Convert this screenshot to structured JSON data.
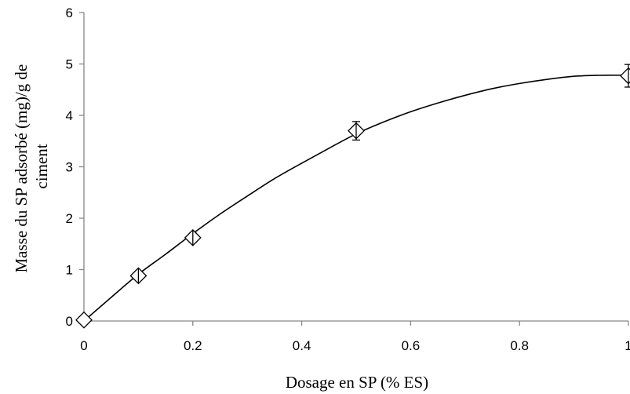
{
  "chart_data": {
    "type": "scatter",
    "title": "",
    "xlabel": "Dosage en SP (% ES)",
    "ylabel_lines": [
      "Masse du SP adsorbé (mg)/g de",
      "ciment"
    ],
    "xlim": [
      0,
      1
    ],
    "ylim": [
      0,
      6
    ],
    "x_ticks": [
      0,
      0.2,
      0.4,
      0.6,
      0.8,
      1
    ],
    "x_tick_labels": [
      "0",
      "0.2",
      "0.4",
      "0.6",
      "0.8",
      "1"
    ],
    "y_ticks": [
      0,
      1,
      2,
      3,
      4,
      5,
      6
    ],
    "y_tick_labels": [
      "0",
      "1",
      "2",
      "3",
      "4",
      "5",
      "6"
    ],
    "grid": false,
    "legend": "none",
    "marker": "diamond",
    "series": [
      {
        "points": [
          {
            "x": 0,
            "y": 0.02,
            "err": 0
          },
          {
            "x": 0.1,
            "y": 0.88,
            "err": 0.07
          },
          {
            "x": 0.2,
            "y": 1.62,
            "err": 0.09
          },
          {
            "x": 0.5,
            "y": 3.7,
            "err": 0.18
          },
          {
            "x": 1.0,
            "y": 4.77,
            "err": 0.22
          }
        ]
      }
    ],
    "trendline": {
      "type": "polynomial",
      "x": [
        0,
        0.05,
        0.1,
        0.15,
        0.2,
        0.25,
        0.3,
        0.35,
        0.4,
        0.45,
        0.5,
        0.55,
        0.6,
        0.65,
        0.7,
        0.75,
        0.8,
        0.85,
        0.9,
        0.95,
        1.0
      ],
      "y": [
        0.0,
        0.46,
        0.91,
        1.3,
        1.7,
        2.08,
        2.43,
        2.77,
        3.07,
        3.36,
        3.64,
        3.87,
        4.07,
        4.24,
        4.39,
        4.52,
        4.62,
        4.7,
        4.76,
        4.78,
        4.78
      ]
    }
  }
}
